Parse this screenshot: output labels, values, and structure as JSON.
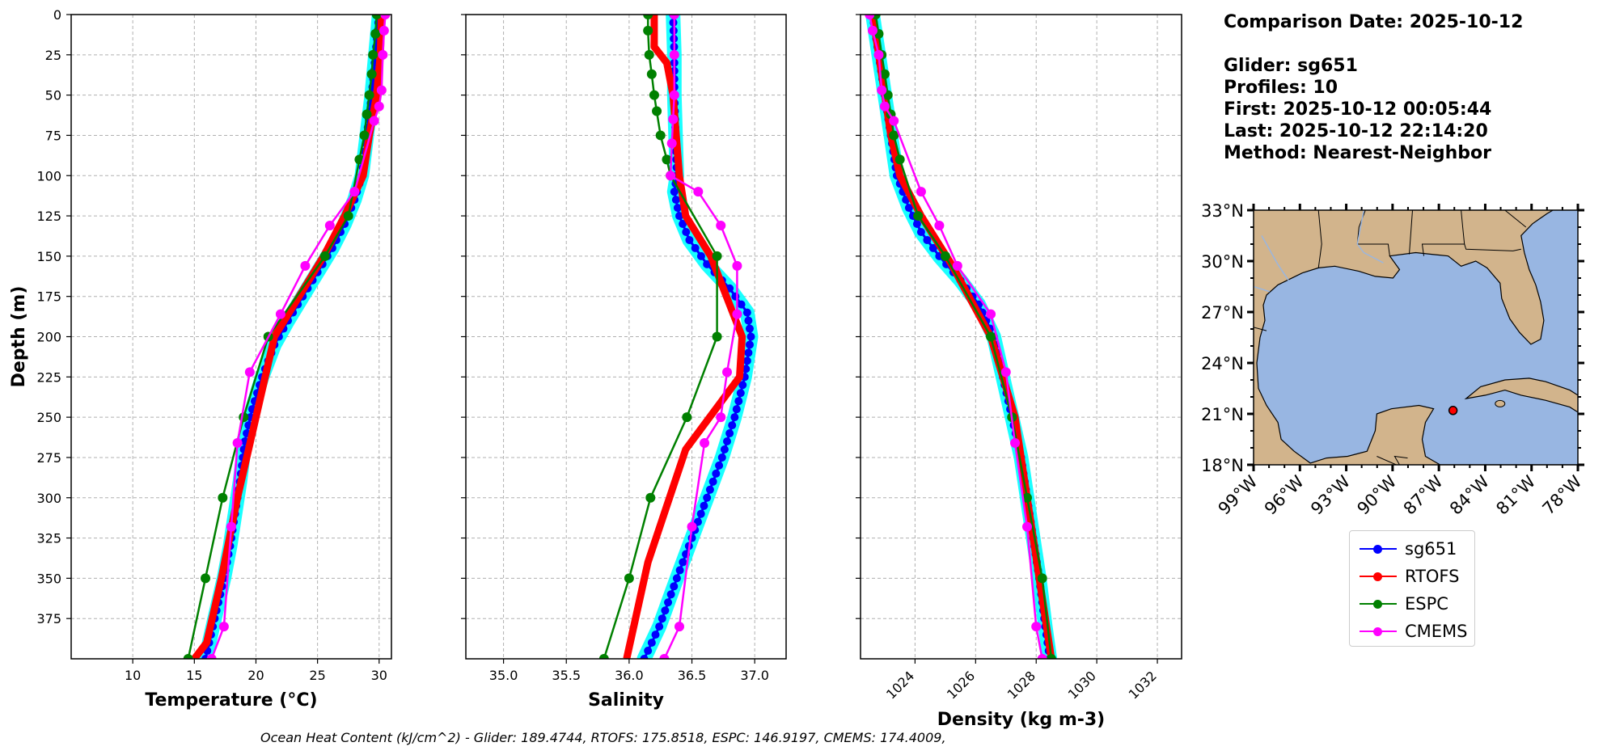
{
  "info": {
    "comparison_date": "Comparison Date: 2025-10-12",
    "glider": "Glider: sg651",
    "profiles": "Profiles: 10",
    "first": "First: 2025-10-12 00:05:44",
    "last": "Last: 2025-10-12 22:14:20",
    "method": "Method: Nearest-Neighbor"
  },
  "footer": "Ocean Heat Content (kJ/cm^2) - Glider: 189.4744,  RTOFS: 175.8518,  ESPC: 146.9197,  CMEMS: 174.4009,",
  "legend": [
    {
      "label": "sg651",
      "color": "#0000ff"
    },
    {
      "label": "RTOFS",
      "color": "#ff0000"
    },
    {
      "label": "ESPC",
      "color": "#008000"
    },
    {
      "label": "CMEMS",
      "color": "#ff00ff"
    }
  ],
  "map": {
    "lat_labels": [
      "33°N",
      "30°N",
      "27°N",
      "24°N",
      "21°N",
      "18°N"
    ],
    "lon_labels": [
      "99°W",
      "96°W",
      "93°W",
      "90°W",
      "87°W",
      "84°W",
      "81°W",
      "78°W"
    ],
    "lon_range": [
      -98,
      -78
    ],
    "lat_range": [
      18,
      33
    ],
    "land_color": "#d2b48c",
    "ocean_color": "#98b6e2",
    "glider_location": {
      "lon": -85.7,
      "lat": 21.2
    }
  },
  "chart_data": [
    {
      "type": "line",
      "xlabel": "Temperature (°C)",
      "ylabel": "Depth (m)",
      "xlim": [
        5,
        31
      ],
      "ylim": [
        400,
        0
      ],
      "xticks": [
        10,
        15,
        20,
        25,
        30
      ],
      "yticks": [
        0,
        25,
        50,
        75,
        100,
        125,
        150,
        175,
        200,
        225,
        250,
        275,
        300,
        325,
        350,
        375
      ],
      "grid": true,
      "series": [
        {
          "name": "sg651",
          "color": "#0000ff",
          "shade": "#00ffff",
          "x": [
            30.0,
            29.7,
            29.4,
            29.0,
            28.6,
            28.0,
            27.2,
            26.2,
            25.0,
            23.8,
            22.6,
            21.5,
            20.5,
            19.7,
            19.1,
            18.7,
            18.3,
            17.9,
            17.4,
            16.8,
            16.2,
            15.9
          ],
          "y": [
            0,
            25,
            50,
            75,
            100,
            115,
            130,
            145,
            160,
            175,
            190,
            205,
            225,
            245,
            265,
            290,
            310,
            330,
            350,
            370,
            390,
            400
          ]
        },
        {
          "name": "RTOFS",
          "color": "#ff0000",
          "x": [
            30.2,
            30.1,
            29.8,
            29.2,
            28.7,
            27.2,
            25.5,
            23.5,
            21.5,
            20.0,
            18.5,
            17.2,
            16.0,
            15.0
          ],
          "y": [
            0,
            25,
            50,
            75,
            100,
            125,
            150,
            175,
            200,
            250,
            300,
            350,
            390,
            400
          ]
        },
        {
          "name": "ESPC",
          "color": "#008000",
          "x": [
            29.8,
            29.7,
            29.5,
            29.4,
            29.2,
            29.0,
            28.8,
            28.4,
            27.5,
            25.6,
            21.0,
            19.0,
            17.3,
            15.9,
            14.5
          ],
          "y": [
            0,
            12,
            25,
            37,
            50,
            62,
            75,
            90,
            125,
            150,
            200,
            250,
            300,
            350,
            400
          ]
        },
        {
          "name": "CMEMS",
          "color": "#ff00ff",
          "x": [
            30.5,
            30.4,
            30.3,
            30.2,
            30.0,
            29.6,
            28.0,
            26.0,
            24.0,
            22.0,
            19.5,
            18.5,
            18.0,
            17.4,
            16.4
          ],
          "y": [
            0,
            10,
            25,
            47,
            57,
            66,
            110,
            131,
            156,
            186,
            222,
            266,
            318,
            380,
            400
          ]
        }
      ]
    },
    {
      "type": "line",
      "xlabel": "Salinity",
      "xlim": [
        34.7,
        37.25
      ],
      "ylim": [
        400,
        0
      ],
      "xticks": [
        35.0,
        35.5,
        36.0,
        36.5,
        37.0
      ],
      "grid": true,
      "series": [
        {
          "name": "sg651",
          "color": "#0000ff",
          "shade": "#00ffff",
          "x": [
            36.35,
            36.36,
            36.36,
            36.37,
            36.38,
            36.36,
            36.4,
            36.48,
            36.62,
            36.8,
            36.94,
            36.97,
            36.92,
            36.84,
            36.74,
            36.62,
            36.5,
            36.38,
            36.24,
            36.12
          ],
          "y": [
            0,
            25,
            50,
            75,
            100,
            110,
            125,
            140,
            155,
            170,
            185,
            200,
            225,
            250,
            275,
            300,
            325,
            350,
            380,
            400
          ]
        },
        {
          "name": "RTOFS",
          "color": "#ff0000",
          "x": [
            36.2,
            36.2,
            36.3,
            36.35,
            36.4,
            36.45,
            36.65,
            36.9,
            36.88,
            36.45,
            36.15,
            35.98
          ],
          "y": [
            0,
            20,
            30,
            50,
            100,
            125,
            150,
            200,
            225,
            270,
            340,
            400
          ]
        },
        {
          "name": "ESPC",
          "color": "#008000",
          "x": [
            36.15,
            36.15,
            36.16,
            36.18,
            36.2,
            36.22,
            36.25,
            36.3,
            36.33,
            36.7,
            36.7,
            36.46,
            36.17,
            36.0,
            35.8
          ],
          "y": [
            0,
            10,
            25,
            37,
            50,
            60,
            75,
            90,
            100,
            150,
            200,
            250,
            300,
            350,
            400
          ]
        },
        {
          "name": "CMEMS",
          "color": "#ff00ff",
          "x": [
            36.36,
            36.36,
            36.36,
            36.35,
            36.34,
            36.33,
            36.55,
            36.73,
            36.86,
            36.86,
            36.78,
            36.73,
            36.6,
            36.5,
            36.4,
            36.28
          ],
          "y": [
            0,
            25,
            50,
            65,
            80,
            100,
            110,
            131,
            156,
            186,
            222,
            250,
            266,
            318,
            380,
            400
          ]
        }
      ]
    },
    {
      "type": "line",
      "xlabel": "Density (kg m-3)",
      "xlim": [
        1022.2,
        1032.8
      ],
      "ylim": [
        400,
        0
      ],
      "xticks": [
        1024,
        1026,
        1028,
        1030,
        1032
      ],
      "grid": true,
      "series": [
        {
          "name": "sg651",
          "color": "#0000ff",
          "shade": "#00ffff",
          "x": [
            1022.6,
            1022.8,
            1023.0,
            1023.2,
            1023.4,
            1023.8,
            1024.2,
            1024.8,
            1025.5,
            1026.1,
            1026.6,
            1026.9,
            1027.2,
            1027.5,
            1027.7,
            1027.9,
            1028.1,
            1028.3,
            1028.45
          ],
          "y": [
            0,
            25,
            50,
            75,
            100,
            120,
            135,
            150,
            165,
            180,
            200,
            225,
            250,
            275,
            300,
            325,
            350,
            380,
            400
          ]
        },
        {
          "name": "RTOFS",
          "color": "#ff0000",
          "x": [
            1022.6,
            1022.8,
            1023.0,
            1023.2,
            1023.5,
            1024.2,
            1025.2,
            1026.5,
            1026.9,
            1027.3,
            1027.7,
            1028.1,
            1028.5
          ],
          "y": [
            0,
            25,
            50,
            75,
            100,
            125,
            155,
            200,
            225,
            250,
            300,
            350,
            400
          ]
        },
        {
          "name": "ESPC",
          "color": "#008000",
          "x": [
            1022.7,
            1022.8,
            1022.9,
            1023.0,
            1023.1,
            1023.2,
            1023.3,
            1023.5,
            1024.1,
            1025.0,
            1026.5,
            1027.2,
            1027.7,
            1028.2,
            1028.5
          ],
          "y": [
            0,
            12,
            25,
            37,
            50,
            62,
            75,
            90,
            125,
            150,
            200,
            250,
            300,
            350,
            400
          ]
        },
        {
          "name": "CMEMS",
          "color": "#ff00ff",
          "x": [
            1022.5,
            1022.6,
            1022.8,
            1022.9,
            1023.0,
            1023.3,
            1024.2,
            1024.8,
            1025.4,
            1026.5,
            1027.0,
            1027.3,
            1027.7,
            1028.0,
            1028.2
          ],
          "y": [
            0,
            10,
            25,
            47,
            57,
            66,
            110,
            131,
            156,
            186,
            222,
            266,
            318,
            380,
            400
          ]
        }
      ]
    }
  ]
}
